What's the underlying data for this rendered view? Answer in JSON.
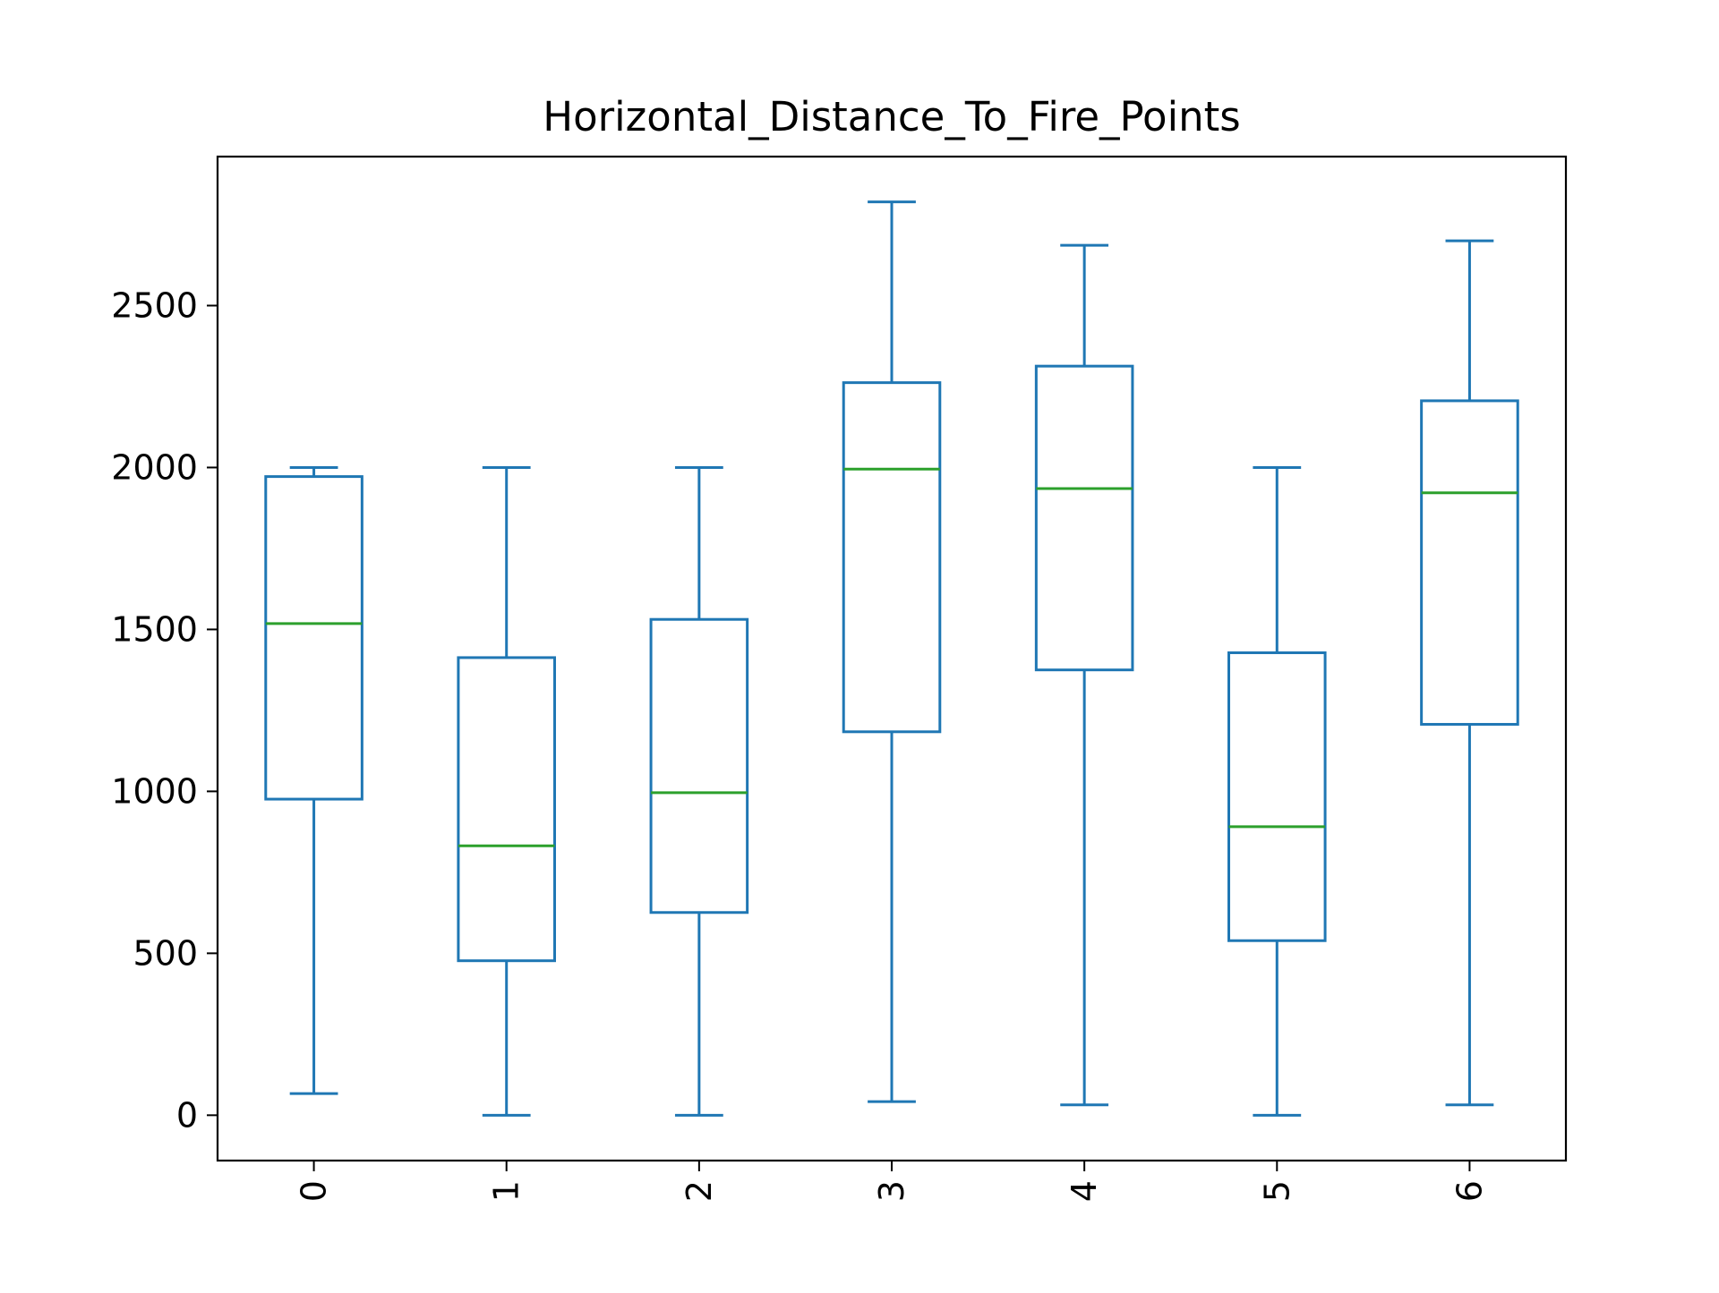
{
  "chart_data": {
    "type": "box",
    "title": "Horizontal_Distance_To_Fire_Points",
    "xlabel": "",
    "ylabel": "",
    "categories": [
      "0",
      "1",
      "2",
      "3",
      "4",
      "5",
      "6"
    ],
    "boxes": [
      {
        "category": "0",
        "whisker_low": 67,
        "q1": 976,
        "median": 1518,
        "q3": 1972,
        "whisker_high": 2000
      },
      {
        "category": "1",
        "whisker_low": 0,
        "q1": 477,
        "median": 832,
        "q3": 1413,
        "whisker_high": 2000
      },
      {
        "category": "2",
        "whisker_low": 0,
        "q1": 626,
        "median": 996,
        "q3": 1531,
        "whisker_high": 2000
      },
      {
        "category": "3",
        "whisker_low": 42,
        "q1": 1184,
        "median": 1995,
        "q3": 2262,
        "whisker_high": 2820
      },
      {
        "category": "4",
        "whisker_low": 32,
        "q1": 1375,
        "median": 1935,
        "q3": 2313,
        "whisker_high": 2686
      },
      {
        "category": "5",
        "whisker_low": 0,
        "q1": 539,
        "median": 891,
        "q3": 1428,
        "whisker_high": 2000
      },
      {
        "category": "6",
        "whisker_low": 32,
        "q1": 1207,
        "median": 1922,
        "q3": 2206,
        "whisker_high": 2700
      }
    ],
    "y_ticks": [
      0,
      500,
      1000,
      1500,
      2000,
      2500
    ],
    "ylim": [
      -140,
      2960
    ],
    "grid": false,
    "legend": "none",
    "colors": {
      "box": "#1f77b4",
      "median": "#2ca02c",
      "frame": "#000000"
    }
  }
}
